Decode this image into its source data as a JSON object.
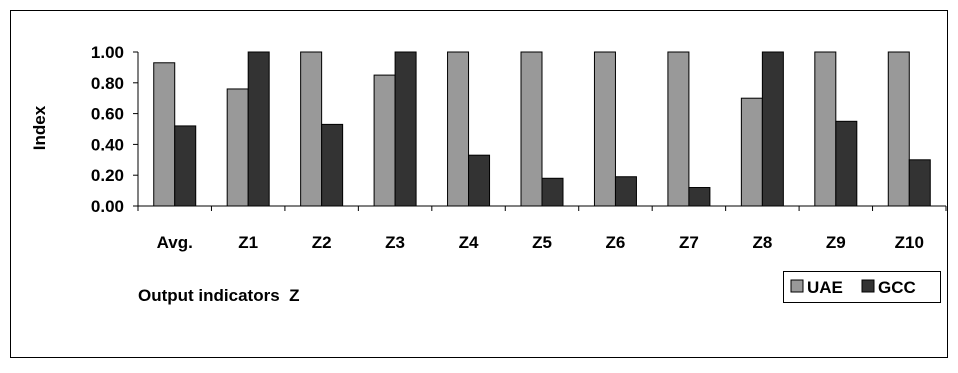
{
  "chart_data": {
    "type": "bar",
    "title": "",
    "xlabel": "Output indicators  Z",
    "ylabel": "Index",
    "ylim": [
      0,
      1.0
    ],
    "y_ticks": [
      "1.00",
      "0.80",
      "0.60",
      "0.40",
      "0.20",
      "0.00"
    ],
    "y_tick_values": [
      1.0,
      0.8,
      0.6,
      0.4,
      0.2,
      0.0
    ],
    "grid": false,
    "legend_position": "bottom-right",
    "categories": [
      "Avg.",
      "Z1",
      "Z2",
      "Z3",
      "Z4",
      "Z5",
      "Z6",
      "Z7",
      "Z8",
      "Z9",
      "Z10"
    ],
    "series": [
      {
        "name": "UAE",
        "color": "#999999",
        "values": [
          0.93,
          0.76,
          1.0,
          0.85,
          1.0,
          1.0,
          1.0,
          1.0,
          0.7,
          1.0,
          1.0
        ]
      },
      {
        "name": "GCC",
        "color": "#333333",
        "values": [
          0.52,
          1.0,
          0.53,
          1.0,
          0.33,
          0.18,
          0.19,
          0.12,
          1.0,
          0.55,
          0.3
        ]
      }
    ]
  }
}
